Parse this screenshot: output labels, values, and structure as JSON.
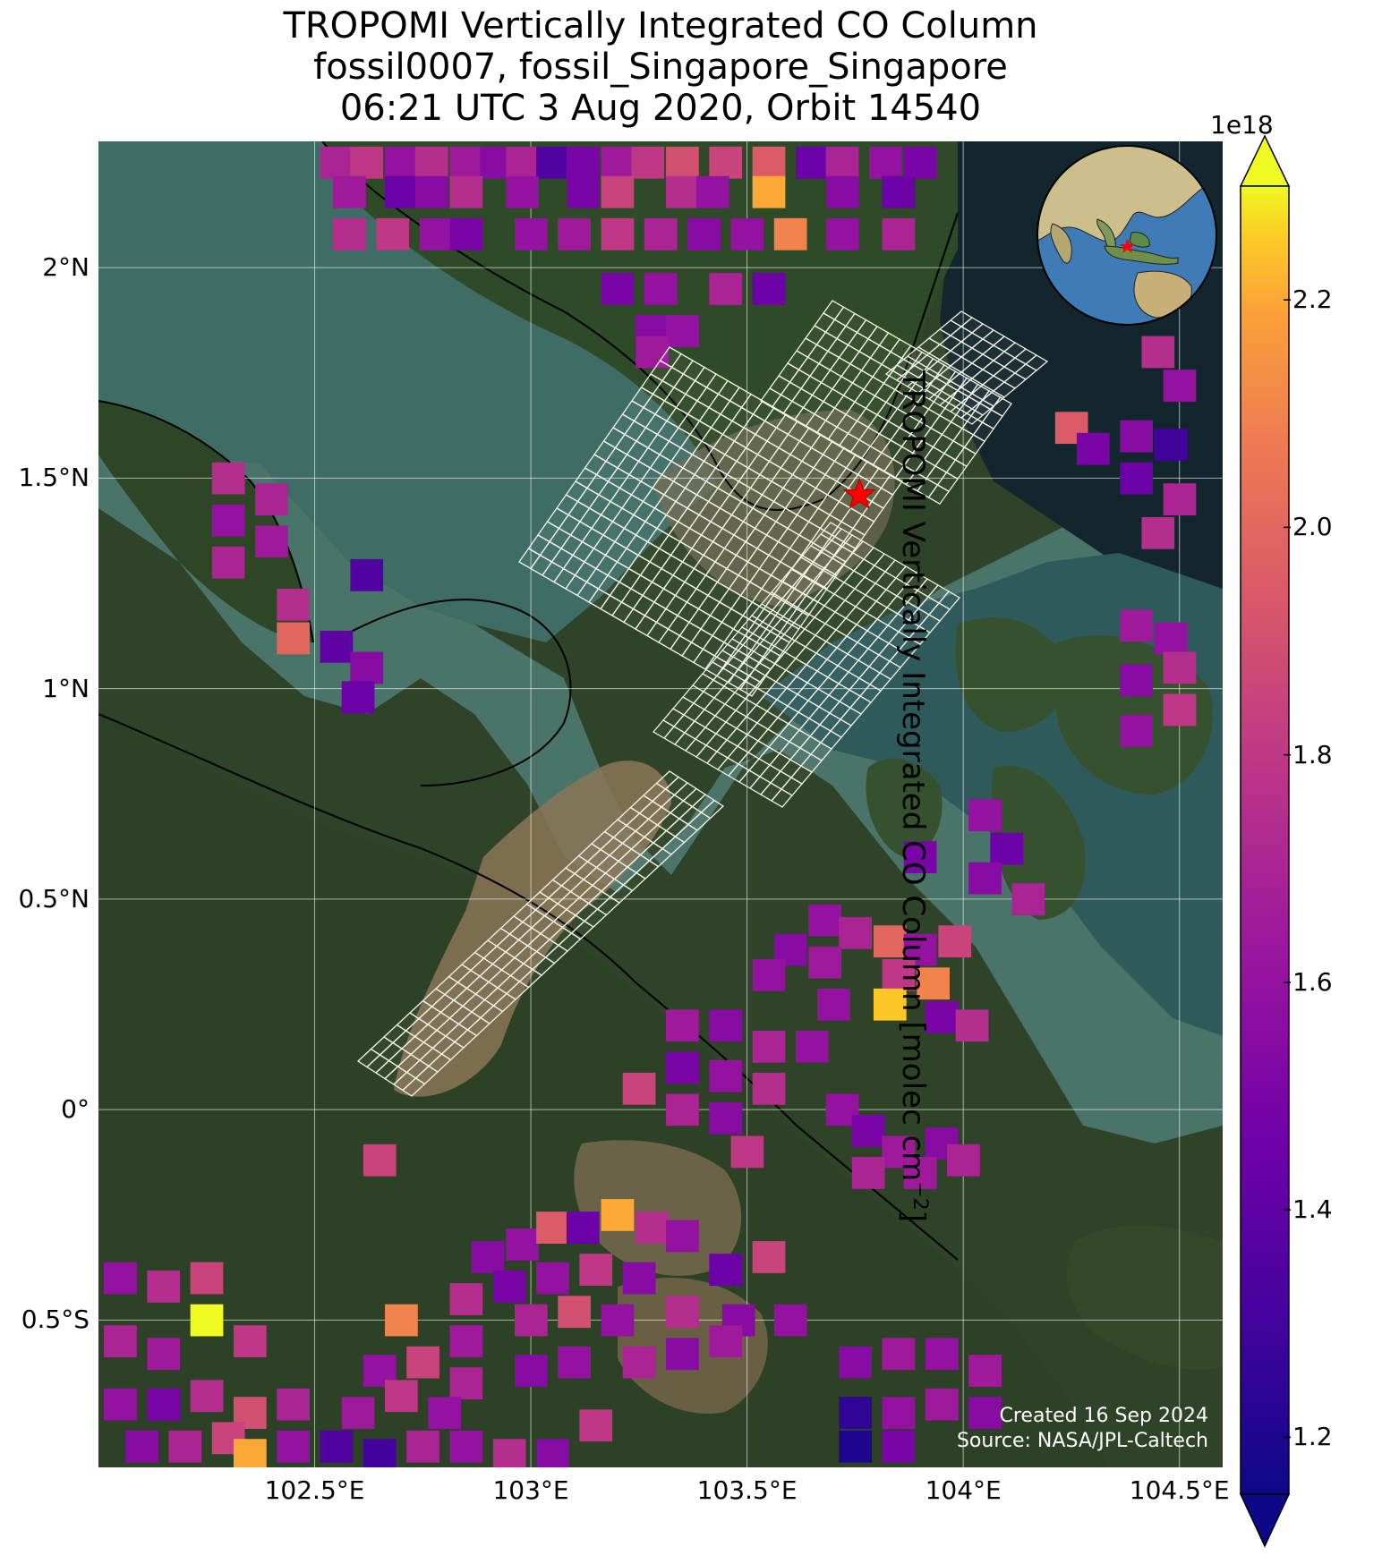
{
  "title": {
    "line1": "TROPOMI Vertically Integrated CO Column",
    "line2": "fossil0007, fossil_Singapore_Singapore",
    "line3": "06:21 UTC 3 Aug 2020, Orbit 14540"
  },
  "map": {
    "lon_range": [
      102.0,
      104.6
    ],
    "lat_range": [
      -0.85,
      2.3
    ],
    "lat_ticks": [
      "2°N",
      "1.5°N",
      "1°N",
      "0.5°N",
      "0°",
      "0.5°S"
    ],
    "lat_tick_values": [
      2.0,
      1.5,
      1.0,
      0.5,
      0.0,
      -0.5
    ],
    "lon_ticks": [
      "102.5°E",
      "103°E",
      "103.5°E",
      "104°E",
      "104.5°E"
    ],
    "lon_tick_values": [
      102.5,
      103.0,
      103.5,
      104.0,
      104.5
    ],
    "target_marker": {
      "lon": 103.76,
      "lat": 1.46,
      "color": "#ff0000"
    },
    "colors": {
      "land": "#2e4327",
      "water": "#3d6a66",
      "sea_dark": "#1d3236",
      "mud": "#8a7a5c"
    }
  },
  "colorbar": {
    "label": "TROPOMI Vertically Integrated CO Column [molec cm",
    "label_sup": "−2",
    "label_end": "]",
    "exponent": "1e18",
    "min": 1.15,
    "max": 2.3,
    "ticks": [
      "1.2",
      "1.4",
      "1.6",
      "1.8",
      "2.0",
      "2.2"
    ],
    "tick_values": [
      1.2,
      1.4,
      1.6,
      1.8,
      2.0,
      2.2
    ],
    "colormap": "plasma"
  },
  "credit": {
    "line1": "Created 16 Sep 2024",
    "line2": "Source: NASA/JPL-Caltech"
  },
  "chart_data": {
    "type": "heatmap",
    "pixel_size_deg": [
      0.075,
      0.075
    ],
    "pixels": [
      [
        102.55,
        2.25,
        1.7
      ],
      [
        102.62,
        2.25,
        1.8
      ],
      [
        102.7,
        2.25,
        1.6
      ],
      [
        102.77,
        2.25,
        1.75
      ],
      [
        102.85,
        2.25,
        1.65
      ],
      [
        102.92,
        2.25,
        1.55
      ],
      [
        102.98,
        2.25,
        1.7
      ],
      [
        103.05,
        2.25,
        1.35
      ],
      [
        103.12,
        2.25,
        1.5
      ],
      [
        103.2,
        2.25,
        1.65
      ],
      [
        103.27,
        2.25,
        1.8
      ],
      [
        103.35,
        2.25,
        1.9
      ],
      [
        103.45,
        2.25,
        1.85
      ],
      [
        103.55,
        2.25,
        1.95
      ],
      [
        103.65,
        2.25,
        1.45
      ],
      [
        103.72,
        2.25,
        1.7
      ],
      [
        103.82,
        2.25,
        1.6
      ],
      [
        103.9,
        2.25,
        1.5
      ],
      [
        102.58,
        2.18,
        1.65
      ],
      [
        102.7,
        2.18,
        1.45
      ],
      [
        102.77,
        2.18,
        1.55
      ],
      [
        102.85,
        2.18,
        1.75
      ],
      [
        102.98,
        2.18,
        1.6
      ],
      [
        103.12,
        2.18,
        1.5
      ],
      [
        103.2,
        2.18,
        1.85
      ],
      [
        103.35,
        2.18,
        1.75
      ],
      [
        103.42,
        2.18,
        1.6
      ],
      [
        103.55,
        2.18,
        2.2
      ],
      [
        103.72,
        2.18,
        1.55
      ],
      [
        103.85,
        2.18,
        1.45
      ],
      [
        102.58,
        2.08,
        1.75
      ],
      [
        102.68,
        2.08,
        1.8
      ],
      [
        102.78,
        2.08,
        1.6
      ],
      [
        102.85,
        2.08,
        1.5
      ],
      [
        103.0,
        2.08,
        1.6
      ],
      [
        103.1,
        2.08,
        1.65
      ],
      [
        103.2,
        2.08,
        1.8
      ],
      [
        103.3,
        2.08,
        1.7
      ],
      [
        103.4,
        2.08,
        1.55
      ],
      [
        103.5,
        2.08,
        1.6
      ],
      [
        103.6,
        2.08,
        2.1
      ],
      [
        103.72,
        2.08,
        1.6
      ],
      [
        103.85,
        2.08,
        1.7
      ],
      [
        103.2,
        1.95,
        1.5
      ],
      [
        103.3,
        1.95,
        1.6
      ],
      [
        103.45,
        1.95,
        1.7
      ],
      [
        103.55,
        1.95,
        1.45
      ],
      [
        103.28,
        1.85,
        1.55
      ],
      [
        103.35,
        1.85,
        1.6
      ],
      [
        103.28,
        1.8,
        1.65
      ],
      [
        102.3,
        1.5,
        1.75
      ],
      [
        102.4,
        1.45,
        1.7
      ],
      [
        102.3,
        1.4,
        1.6
      ],
      [
        102.4,
        1.35,
        1.65
      ],
      [
        102.3,
        1.3,
        1.7
      ],
      [
        102.62,
        1.27,
        1.35
      ],
      [
        102.45,
        1.2,
        1.75
      ],
      [
        102.45,
        1.12,
        2.0
      ],
      [
        102.55,
        1.1,
        1.4
      ],
      [
        102.62,
        1.05,
        1.55
      ],
      [
        102.6,
        0.98,
        1.45
      ],
      [
        104.45,
        1.8,
        1.75
      ],
      [
        104.5,
        1.72,
        1.6
      ],
      [
        104.4,
        1.6,
        1.55
      ],
      [
        104.48,
        1.58,
        1.3
      ],
      [
        104.4,
        1.5,
        1.45
      ],
      [
        104.5,
        1.45,
        1.7
      ],
      [
        104.25,
        1.62,
        1.95
      ],
      [
        104.3,
        1.57,
        1.5
      ],
      [
        104.45,
        1.37,
        1.75
      ],
      [
        104.4,
        1.15,
        1.65
      ],
      [
        104.48,
        1.12,
        1.6
      ],
      [
        104.5,
        1.05,
        1.75
      ],
      [
        104.4,
        1.02,
        1.55
      ],
      [
        104.5,
        0.95,
        1.8
      ],
      [
        104.4,
        0.9,
        1.6
      ],
      [
        104.05,
        0.7,
        1.6
      ],
      [
        104.1,
        0.62,
        1.45
      ],
      [
        104.05,
        0.55,
        1.55
      ],
      [
        103.9,
        0.6,
        1.5
      ],
      [
        104.15,
        0.5,
        1.7
      ],
      [
        103.68,
        0.45,
        1.6
      ],
      [
        103.75,
        0.42,
        1.7
      ],
      [
        103.83,
        0.4,
        2.0
      ],
      [
        103.9,
        0.38,
        1.6
      ],
      [
        103.98,
        0.4,
        1.85
      ],
      [
        103.6,
        0.38,
        1.55
      ],
      [
        103.68,
        0.35,
        1.65
      ],
      [
        103.55,
        0.32,
        1.6
      ],
      [
        103.85,
        0.32,
        1.8
      ],
      [
        103.93,
        0.3,
        2.1
      ],
      [
        103.95,
        0.22,
        1.5
      ],
      [
        104.02,
        0.2,
        1.75
      ],
      [
        103.83,
        0.25,
        2.25
      ],
      [
        103.7,
        0.25,
        1.6
      ],
      [
        103.35,
        0.2,
        1.65
      ],
      [
        103.45,
        0.2,
        1.55
      ],
      [
        103.55,
        0.15,
        1.7
      ],
      [
        103.65,
        0.15,
        1.6
      ],
      [
        103.35,
        0.1,
        1.5
      ],
      [
        103.45,
        0.08,
        1.6
      ],
      [
        103.55,
        0.05,
        1.75
      ],
      [
        103.25,
        0.05,
        1.85
      ],
      [
        103.35,
        0.0,
        1.7
      ],
      [
        103.45,
        -0.02,
        1.55
      ],
      [
        103.72,
        0.0,
        1.6
      ],
      [
        103.78,
        -0.05,
        1.5
      ],
      [
        103.85,
        -0.1,
        1.65
      ],
      [
        103.95,
        -0.08,
        1.55
      ],
      [
        103.9,
        -0.15,
        1.65
      ],
      [
        104.0,
        -0.12,
        1.7
      ],
      [
        103.78,
        -0.15,
        1.7
      ],
      [
        103.5,
        -0.1,
        1.8
      ],
      [
        102.65,
        -0.12,
        1.85
      ],
      [
        102.9,
        -0.35,
        1.55
      ],
      [
        102.98,
        -0.32,
        1.6
      ],
      [
        103.05,
        -0.28,
        1.95
      ],
      [
        103.12,
        -0.28,
        1.45
      ],
      [
        103.2,
        -0.25,
        2.2
      ],
      [
        103.28,
        -0.28,
        1.75
      ],
      [
        103.35,
        -0.3,
        1.6
      ],
      [
        103.45,
        -0.38,
        1.45
      ],
      [
        103.55,
        -0.35,
        1.85
      ],
      [
        102.85,
        -0.45,
        1.75
      ],
      [
        102.95,
        -0.42,
        1.5
      ],
      [
        103.05,
        -0.4,
        1.6
      ],
      [
        103.15,
        -0.38,
        1.8
      ],
      [
        103.25,
        -0.4,
        1.55
      ],
      [
        102.7,
        -0.5,
        2.1
      ],
      [
        102.85,
        -0.55,
        1.65
      ],
      [
        103.0,
        -0.5,
        1.7
      ],
      [
        103.1,
        -0.48,
        1.9
      ],
      [
        103.2,
        -0.5,
        1.6
      ],
      [
        103.35,
        -0.48,
        1.75
      ],
      [
        103.48,
        -0.5,
        1.55
      ],
      [
        103.6,
        -0.5,
        1.6
      ],
      [
        102.05,
        -0.4,
        1.6
      ],
      [
        102.15,
        -0.42,
        1.75
      ],
      [
        102.25,
        -0.4,
        1.85
      ],
      [
        102.25,
        -0.5,
        2.3
      ],
      [
        102.35,
        -0.55,
        1.8
      ],
      [
        102.05,
        -0.55,
        1.7
      ],
      [
        102.15,
        -0.58,
        1.65
      ],
      [
        102.65,
        -0.62,
        1.6
      ],
      [
        102.75,
        -0.6,
        1.85
      ],
      [
        102.85,
        -0.65,
        1.7
      ],
      [
        103.0,
        -0.62,
        1.55
      ],
      [
        103.1,
        -0.6,
        1.6
      ],
      [
        103.25,
        -0.6,
        1.7
      ],
      [
        103.35,
        -0.58,
        1.55
      ],
      [
        103.45,
        -0.55,
        1.65
      ],
      [
        103.75,
        -0.6,
        1.55
      ],
      [
        103.85,
        -0.58,
        1.65
      ],
      [
        103.95,
        -0.58,
        1.6
      ],
      [
        104.05,
        -0.62,
        1.65
      ],
      [
        102.05,
        -0.7,
        1.6
      ],
      [
        102.15,
        -0.7,
        1.5
      ],
      [
        102.25,
        -0.68,
        1.75
      ],
      [
        102.35,
        -0.72,
        1.9
      ],
      [
        102.45,
        -0.7,
        1.7
      ],
      [
        102.6,
        -0.72,
        1.65
      ],
      [
        102.7,
        -0.68,
        1.8
      ],
      [
        102.8,
        -0.72,
        1.6
      ],
      [
        103.75,
        -0.72,
        1.25
      ],
      [
        103.85,
        -0.72,
        1.6
      ],
      [
        103.95,
        -0.7,
        1.65
      ],
      [
        104.05,
        -0.72,
        1.55
      ],
      [
        102.1,
        -0.8,
        1.55
      ],
      [
        102.2,
        -0.8,
        1.7
      ],
      [
        102.3,
        -0.78,
        1.85
      ],
      [
        102.35,
        -0.82,
        2.2
      ],
      [
        102.45,
        -0.8,
        1.6
      ],
      [
        102.55,
        -0.8,
        1.35
      ],
      [
        102.65,
        -0.82,
        1.3
      ],
      [
        102.75,
        -0.8,
        1.7
      ],
      [
        102.85,
        -0.8,
        1.6
      ],
      [
        103.15,
        -0.75,
        1.8
      ],
      [
        103.75,
        -0.8,
        1.2
      ],
      [
        103.85,
        -0.8,
        1.5
      ],
      [
        102.95,
        -0.82,
        1.75
      ],
      [
        103.05,
        -0.82,
        1.55
      ]
    ]
  }
}
